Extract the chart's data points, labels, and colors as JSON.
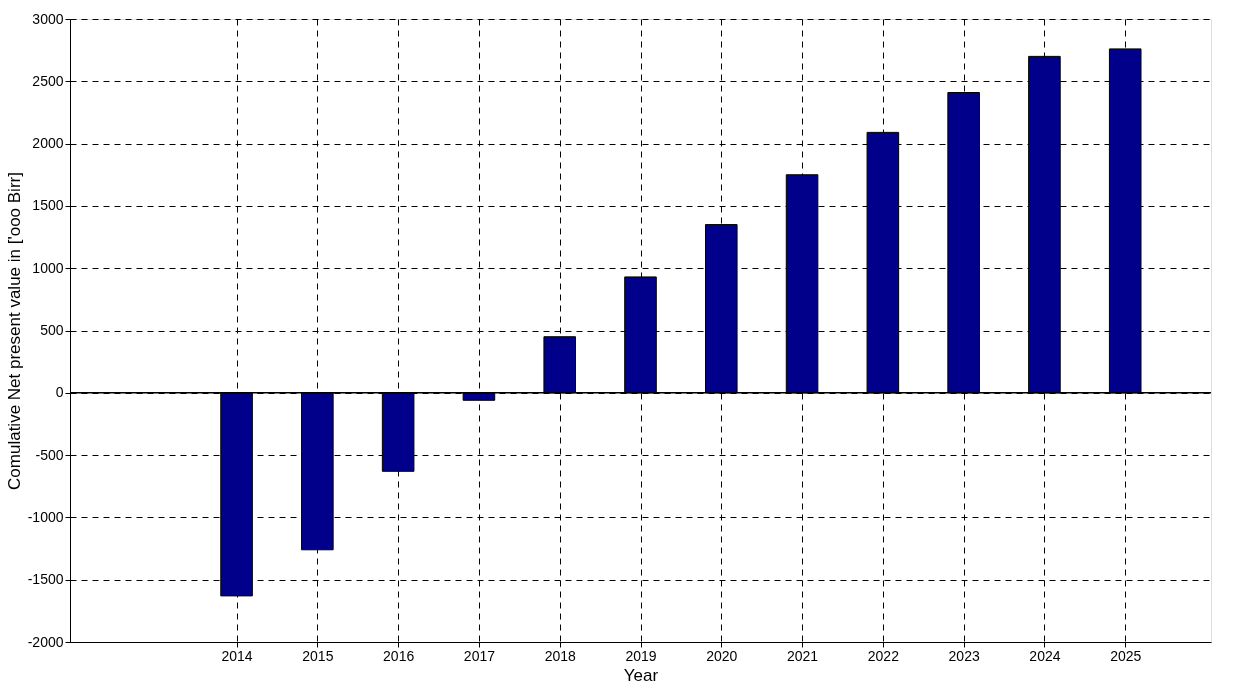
{
  "chart_data": {
    "type": "bar",
    "xlabel": "Year",
    "ylabel": "Comulative Net present value in ['ooo Birr]",
    "x": [
      2014,
      2015,
      2016,
      2017,
      2018,
      2019,
      2020,
      2021,
      2022,
      2023,
      2024,
      2025
    ],
    "series": [
      {
        "color": "#00008b",
        "values": [
          -1630,
          -1260,
          -630,
          -60,
          450,
          930,
          1350,
          1750,
          2090,
          2410,
          2700,
          2760
        ]
      }
    ],
    "xlim": [
      2012,
      2026
    ],
    "xticks": [
      2014,
      2015,
      2016,
      2017,
      2018,
      2019,
      2020,
      2021,
      2022,
      2023,
      2024,
      2025
    ],
    "ylim": [
      -2000,
      3000
    ],
    "yticks": [
      -2000,
      -1500,
      -1000,
      -500,
      0,
      500,
      1000,
      1500,
      2000,
      2500,
      3000
    ],
    "ref_lines": [
      {
        "axis": "y",
        "value": 0,
        "color": "#000000"
      }
    ],
    "grid": true
  }
}
